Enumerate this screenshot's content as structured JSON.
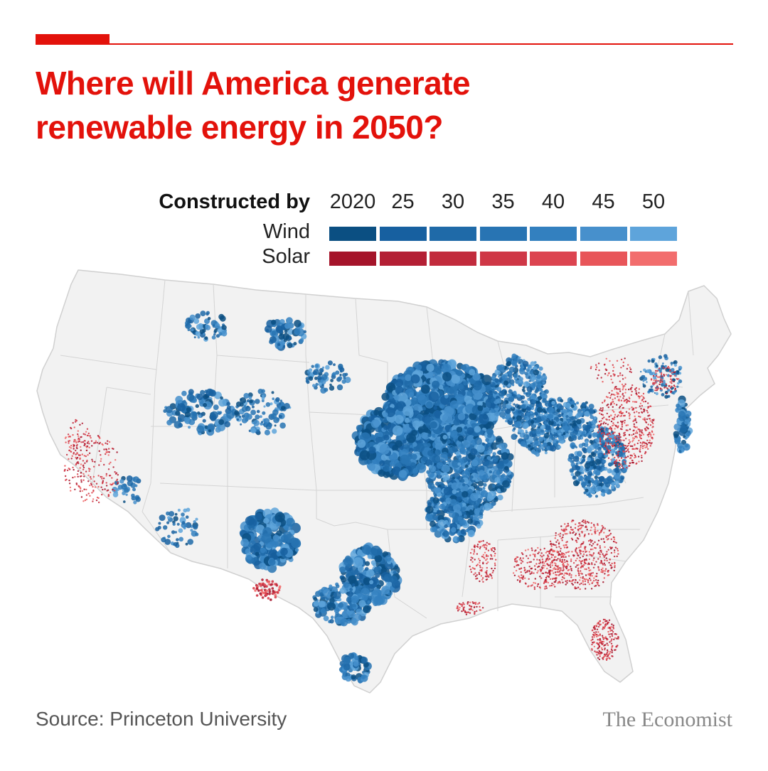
{
  "header": {
    "title_line1": "Where will America generate",
    "title_line2": "renewable energy in 2050?"
  },
  "legend": {
    "heading": "Constructed by",
    "years": [
      "2020",
      "25",
      "30",
      "35",
      "40",
      "45",
      "50"
    ],
    "rows": [
      {
        "label": "Wind",
        "colors": [
          "#0b4f82",
          "#1760a0",
          "#1f6aa8",
          "#2874b3",
          "#3380bf",
          "#4790cc",
          "#5ea4db"
        ]
      },
      {
        "label": "Solar",
        "colors": [
          "#a5142a",
          "#b41f34",
          "#c22b3d",
          "#cf3746",
          "#dc4450",
          "#e85559",
          "#f26d6d"
        ]
      }
    ]
  },
  "map": {
    "region": "Contiguous United States",
    "land_color": "#f2f2f2",
    "border_color": "#d0d0d0"
  },
  "footer": {
    "source": "Source: Princeton University",
    "brand": "The Economist"
  }
}
